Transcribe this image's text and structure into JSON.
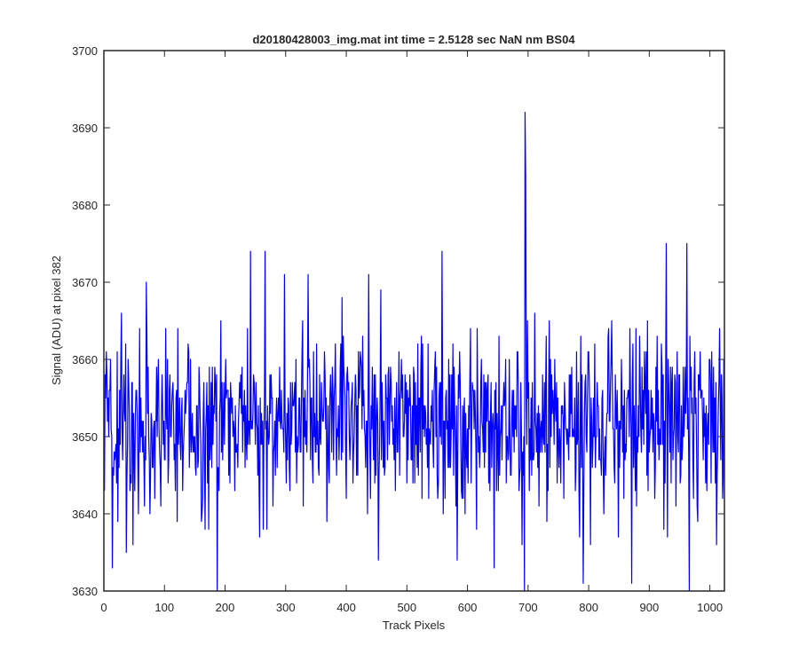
{
  "chart_data": {
    "type": "line",
    "title": "d20180428003_img.mat int time = 2.5128 sec  NaN nm BS04",
    "xlabel": "Track Pixels",
    "ylabel": "Signal (ADU) at pixel 382",
    "xlim": [
      0,
      1024
    ],
    "ylim": [
      3630,
      3700
    ],
    "xticks": [
      0,
      100,
      200,
      300,
      400,
      500,
      600,
      700,
      800,
      900,
      1000
    ],
    "yticks": [
      3630,
      3640,
      3650,
      3660,
      3670,
      3680,
      3690,
      3700
    ],
    "grid": false,
    "legend": "none",
    "series": [
      {
        "color": "#0000ff",
        "n_points": 1024,
        "mean": 3652,
        "noise_std": 5.8,
        "noise_seed": 382,
        "range": [
          3630,
          3692
        ],
        "marked_points": [
          {
            "x": 13,
            "y": 3633
          },
          {
            "x": 28,
            "y": 3666
          },
          {
            "x": 36,
            "y": 3635
          },
          {
            "x": 69,
            "y": 3670
          },
          {
            "x": 186,
            "y": 3630
          },
          {
            "x": 241,
            "y": 3674
          },
          {
            "x": 256,
            "y": 3637
          },
          {
            "x": 265,
            "y": 3674
          },
          {
            "x": 297,
            "y": 3671
          },
          {
            "x": 336,
            "y": 3671
          },
          {
            "x": 436,
            "y": 3671
          },
          {
            "x": 452,
            "y": 3634
          },
          {
            "x": 557,
            "y": 3674
          },
          {
            "x": 643,
            "y": 3633
          },
          {
            "x": 693,
            "y": 3630
          },
          {
            "x": 694,
            "y": 3692
          },
          {
            "x": 695,
            "y": 3684
          },
          {
            "x": 790,
            "y": 3631
          },
          {
            "x": 870,
            "y": 3631
          },
          {
            "x": 927,
            "y": 3675
          },
          {
            "x": 961,
            "y": 3675
          },
          {
            "x": 965,
            "y": 3630
          },
          {
            "x": 1015,
            "y": 3664
          }
        ]
      }
    ]
  }
}
